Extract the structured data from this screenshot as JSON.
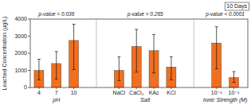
{
  "chart_data": {
    "type": "bar",
    "ylabel": "Leached Concentration (μg/L)",
    "annotation": "10 Days",
    "ylim": [
      0,
      4000
    ],
    "yticks": [
      0,
      1000,
      2000,
      3000,
      4000
    ],
    "groups": [
      {
        "label": "pH",
        "pvalue": "p-value = 0.036",
        "categories": [
          "4",
          "7",
          "10"
        ],
        "series": [
          {
            "color": "#F07020",
            "values": [
              1000,
              1400,
              2750
            ],
            "err_low": [
              550,
              900,
              1700
            ],
            "err_high": [
              650,
              700,
              950
            ]
          },
          {
            "color": "#BB1111",
            "values": [
              30,
              30,
              30
            ]
          }
        ]
      },
      {
        "label": "Salt",
        "pvalue": "p-value = 0.265",
        "categories": [
          "NaCl",
          "CaCl₂",
          "KAc",
          "KCl"
        ],
        "series": [
          {
            "color": "#F07020",
            "values": [
              1000,
              2400,
              2150,
              1200
            ],
            "err_low": [
              600,
              1500,
              1300,
              750
            ],
            "err_high": [
              800,
              1000,
              950,
              600
            ]
          },
          {
            "color": "#BB1111",
            "values": [
              30,
              30,
              30,
              30
            ]
          }
        ]
      },
      {
        "label": "Ionic Strength (M)",
        "pvalue": "p-value < 0.0001",
        "categories": [
          "10⁻²",
          "10⁻¹"
        ],
        "series": [
          {
            "color": "#F07020",
            "values": [
              2600,
              580
            ],
            "err_low": [
              1500,
              280
            ],
            "err_high": [
              950,
              350
            ]
          },
          {
            "color": "#BB1111",
            "values": [
              30,
              30
            ]
          }
        ]
      }
    ]
  }
}
